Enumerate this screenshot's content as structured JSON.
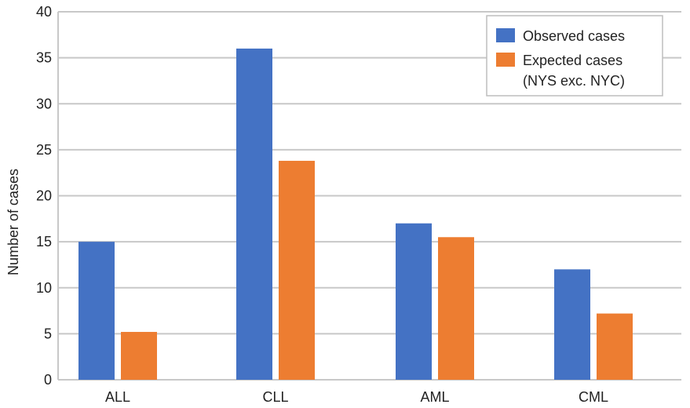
{
  "chart_data": {
    "type": "bar",
    "title": "",
    "xlabel": "",
    "ylabel": "Number of cases",
    "categories": [
      "ALL",
      "CLL",
      "AML",
      "CML"
    ],
    "series": [
      {
        "name": "Observed cases",
        "values": [
          15,
          36,
          17,
          12
        ],
        "color": "#4472C4"
      },
      {
        "name": "Expected cases (NYS exc. NYC)",
        "values": [
          5.2,
          23.8,
          15.5,
          7.2
        ],
        "color": "#ED7D31"
      }
    ],
    "ylim": [
      0,
      40
    ],
    "yticks": [
      0,
      5,
      10,
      15,
      20,
      25,
      30,
      35,
      40
    ],
    "grid": true,
    "legend_position": "top-right",
    "legend_lines": [
      [
        "Observed cases"
      ],
      [
        "Expected cases",
        "(NYS exc. NYC)"
      ]
    ],
    "gridline_color": "#C8C8C8"
  }
}
